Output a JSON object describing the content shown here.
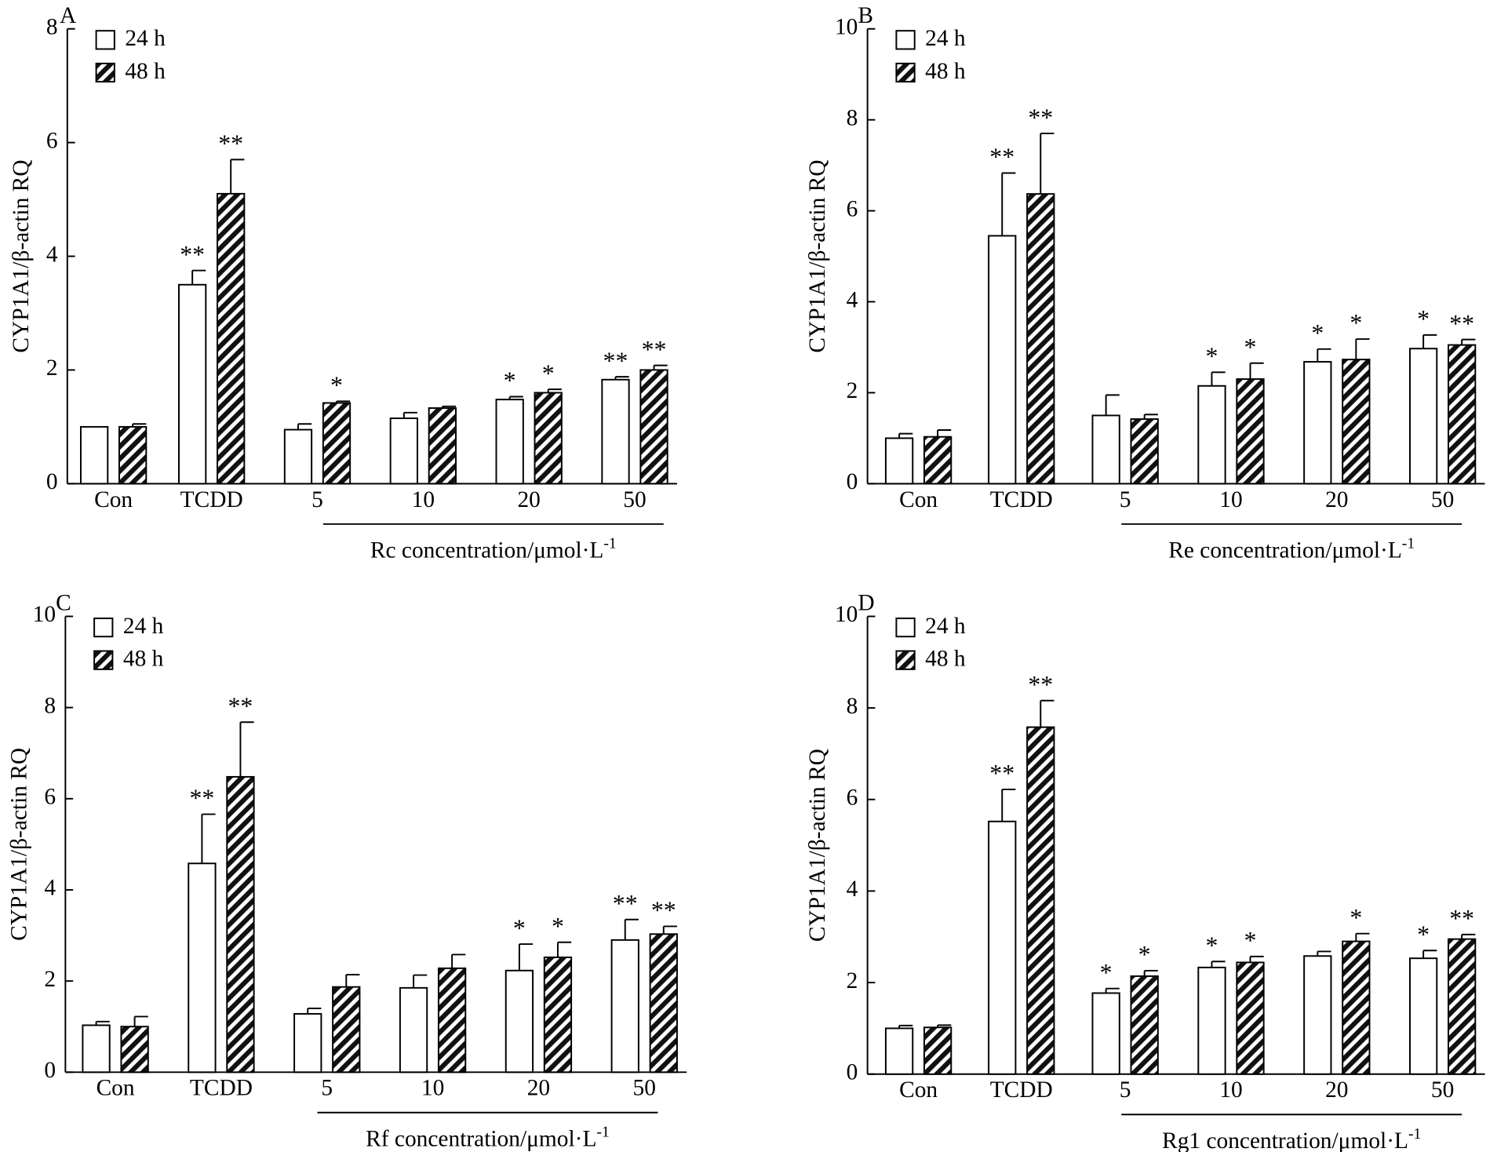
{
  "chart_data": [
    {
      "type": "bar",
      "panel": "A",
      "ylabel": "CYP1A1/β-actin RQ",
      "ylim": [
        0,
        8
      ],
      "yticks": [
        0,
        2,
        4,
        6,
        8
      ],
      "categories": [
        "Con",
        "TCDD",
        "5",
        "10",
        "20",
        "50"
      ],
      "group_label": "Rc concentration/μmol·L",
      "group_label_sup": "-1",
      "series": [
        {
          "name": "24 h",
          "values": [
            1.0,
            3.5,
            0.95,
            1.15,
            1.48,
            1.83
          ],
          "errors": [
            0.0,
            0.25,
            0.1,
            0.1,
            0.05,
            0.05
          ],
          "marks": [
            "",
            "**",
            "",
            "",
            "*",
            "**"
          ]
        },
        {
          "name": "48 h",
          "values": [
            1.0,
            5.1,
            1.42,
            1.33,
            1.6,
            2.0
          ],
          "errors": [
            0.05,
            0.6,
            0.03,
            0.03,
            0.06,
            0.08
          ],
          "marks": [
            "",
            "**",
            "*",
            "",
            "*",
            "**"
          ]
        }
      ]
    },
    {
      "type": "bar",
      "panel": "B",
      "ylabel": "CYP1A1/β-actin RQ",
      "ylim": [
        0,
        10
      ],
      "yticks": [
        0,
        2,
        4,
        6,
        8,
        10
      ],
      "categories": [
        "Con",
        "TCDD",
        "5",
        "10",
        "20",
        "50"
      ],
      "group_label": "Re concentration/μmol·L",
      "group_label_sup": "-1",
      "series": [
        {
          "name": "24 h",
          "values": [
            1.0,
            5.45,
            1.5,
            2.15,
            2.68,
            2.97
          ],
          "errors": [
            0.1,
            1.38,
            0.45,
            0.3,
            0.28,
            0.3
          ],
          "marks": [
            "",
            "**",
            "",
            "*",
            "*",
            "*"
          ]
        },
        {
          "name": "48 h",
          "values": [
            1.03,
            6.37,
            1.42,
            2.3,
            2.73,
            3.05
          ],
          "errors": [
            0.15,
            1.33,
            0.1,
            0.35,
            0.45,
            0.12
          ],
          "marks": [
            "",
            "**",
            "",
            "*",
            "*",
            "**"
          ]
        }
      ]
    },
    {
      "type": "bar",
      "panel": "C",
      "ylabel": "CYP1A1/β-actin RQ",
      "ylim": [
        0,
        10
      ],
      "yticks": [
        0,
        2,
        4,
        6,
        8,
        10
      ],
      "categories": [
        "Con",
        "TCDD",
        "5",
        "10",
        "20",
        "50"
      ],
      "group_label": "Rf concentration/μmol·L",
      "group_label_sup": "-1",
      "series": [
        {
          "name": "24 h",
          "values": [
            1.03,
            4.58,
            1.28,
            1.85,
            2.23,
            2.9
          ],
          "errors": [
            0.08,
            1.08,
            0.12,
            0.28,
            0.58,
            0.45
          ],
          "marks": [
            "",
            "**",
            "",
            "",
            "*",
            "**"
          ]
        },
        {
          "name": "48 h",
          "values": [
            1.0,
            6.48,
            1.87,
            2.28,
            2.52,
            3.03
          ],
          "errors": [
            0.22,
            1.2,
            0.27,
            0.3,
            0.33,
            0.17
          ],
          "marks": [
            "",
            "**",
            "",
            "",
            "*",
            "**"
          ]
        }
      ]
    },
    {
      "type": "bar",
      "panel": "D",
      "ylabel": "CYP1A1/β-actin RQ",
      "ylim": [
        0,
        10
      ],
      "yticks": [
        0,
        2,
        4,
        6,
        8,
        10
      ],
      "categories": [
        "Con",
        "TCDD",
        "5",
        "10",
        "20",
        "50"
      ],
      "group_label": "Rg1 concentration/μmol·L",
      "group_label_sup": "-1",
      "series": [
        {
          "name": "24 h",
          "values": [
            1.0,
            5.52,
            1.77,
            2.33,
            2.58,
            2.53
          ],
          "errors": [
            0.06,
            0.7,
            0.1,
            0.13,
            0.1,
            0.17
          ],
          "marks": [
            "",
            "**",
            "*",
            "*",
            "",
            "*"
          ]
        },
        {
          "name": "48 h",
          "values": [
            1.02,
            7.58,
            2.14,
            2.44,
            2.9,
            2.95
          ],
          "errors": [
            0.05,
            0.58,
            0.12,
            0.13,
            0.17,
            0.1
          ],
          "marks": [
            "",
            "**",
            "*",
            "*",
            "*",
            "**"
          ]
        }
      ]
    }
  ]
}
